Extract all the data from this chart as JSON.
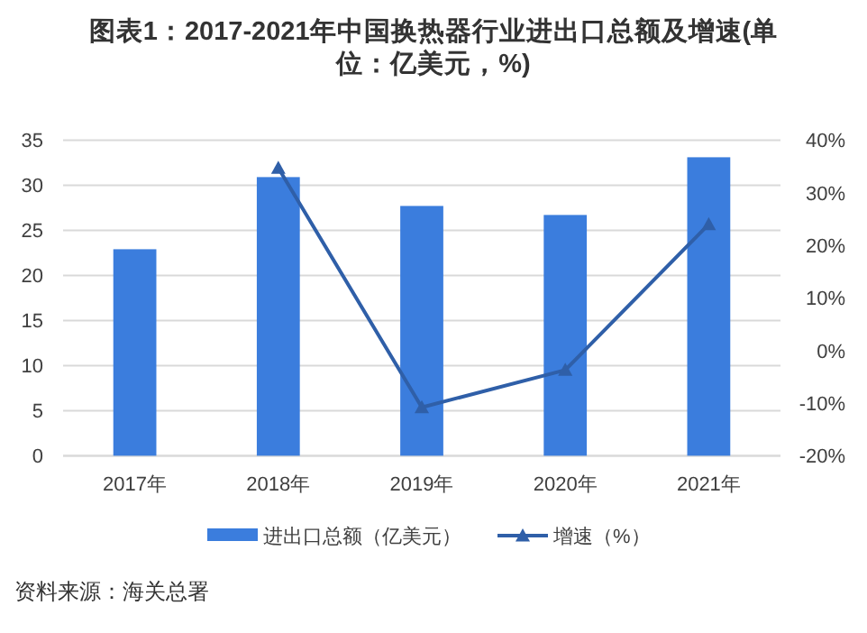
{
  "chart_data": {
    "type": "bar",
    "title": "图表1：2017-2021年中国换热器行业进出口总额及增速(单位：亿美元，%)",
    "categories": [
      "2017年",
      "2018年",
      "2019年",
      "2020年",
      "2021年"
    ],
    "series": [
      {
        "name": "进出口总额（亿美元）",
        "color": "#3b7ddd",
        "values": [
          22.9,
          30.9,
          27.7,
          26.7,
          33.1
        ]
      },
      {
        "name": "增速（%）",
        "type": "line",
        "axis": "y2",
        "color": "#2f5fa8",
        "marker": "triangle",
        "values": [
          null,
          34.7,
          -10.8,
          -3.7,
          24.0
        ]
      }
    ],
    "ylim": [
      0,
      35
    ],
    "yticks": [
      0,
      5,
      10,
      15,
      20,
      25,
      30,
      35
    ],
    "y2lim": [
      -20,
      40
    ],
    "y2ticks": [
      {
        "value": -20,
        "label": "-20%"
      },
      {
        "value": -10,
        "label": "-10%"
      },
      {
        "value": 0,
        "label": "0%"
      },
      {
        "value": 10,
        "label": "10%"
      },
      {
        "value": 20,
        "label": "20%"
      },
      {
        "value": 30,
        "label": "30%"
      },
      {
        "value": 40,
        "label": "40%"
      }
    ],
    "grid": "y",
    "legend": "bottom",
    "annotations": [
      "资料来源：海关总署"
    ]
  }
}
